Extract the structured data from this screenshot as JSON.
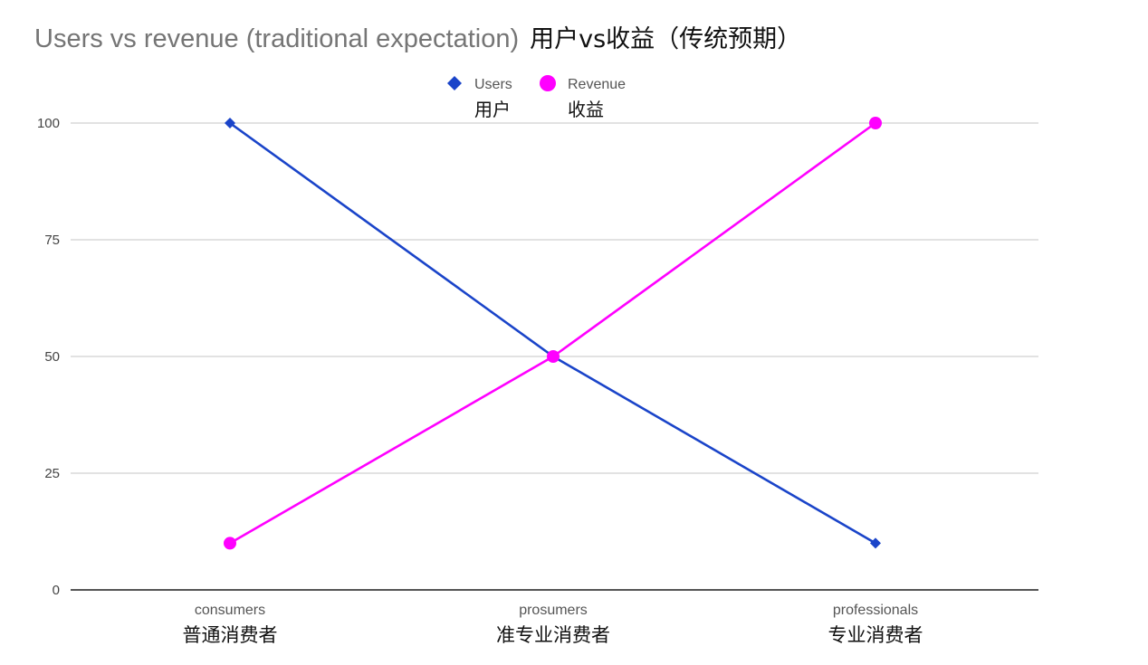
{
  "chart_data": {
    "type": "line",
    "title": "Users vs revenue (traditional expectation)",
    "title_zh": "用户vs收益（传统预期）",
    "categories": [
      "consumers",
      "prosumers",
      "professionals"
    ],
    "categories_zh": [
      "普通消费者",
      "准专业消费者",
      "专业消费者"
    ],
    "series": [
      {
        "name": "Users",
        "name_zh": "用户",
        "values": [
          100,
          50,
          10
        ],
        "color": "#1a44c9",
        "marker": "diamond"
      },
      {
        "name": "Revenue",
        "name_zh": "收益",
        "values": [
          10,
          50,
          100
        ],
        "color": "#ff00ff",
        "marker": "circle"
      }
    ],
    "y_ticks": [
      "0",
      "25",
      "50",
      "75",
      "100"
    ],
    "ylim": [
      0,
      100
    ],
    "xlabel": "",
    "ylabel": "",
    "grid": true,
    "legend_position": "top-center"
  }
}
